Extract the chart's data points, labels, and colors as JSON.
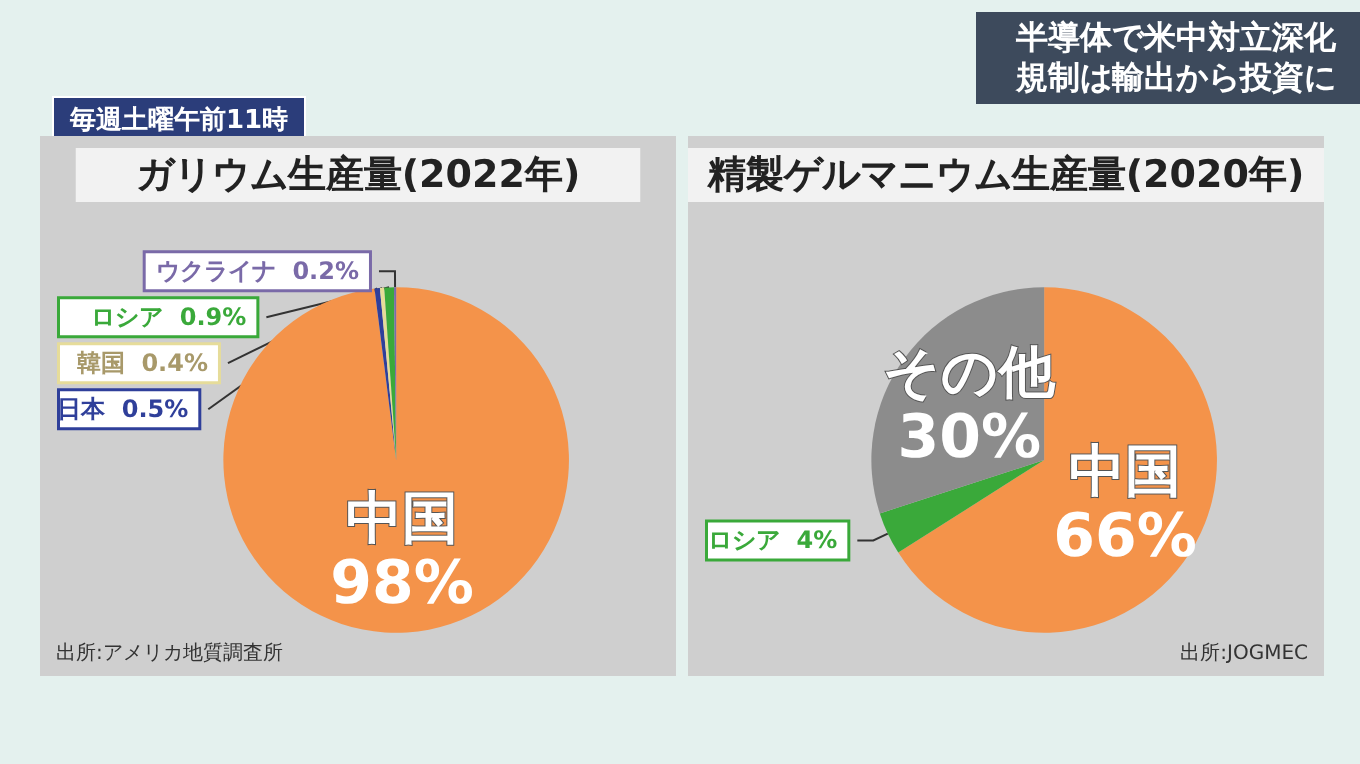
{
  "chart_data": [
    {
      "type": "pie",
      "title": "ガリウム生産量(2022年)",
      "categories": [
        "中国",
        "日本",
        "韓国",
        "ロシア",
        "ウクライナ"
      ],
      "values": [
        98,
        0.5,
        0.4,
        0.9,
        0.2
      ],
      "colors": [
        "#f4934a",
        "#2f3f9a",
        "#e6dc9a",
        "#3aa93a",
        "#7a6aa8"
      ],
      "value_labels": [
        "98%",
        "0.5%",
        "0.4%",
        "0.9%",
        "0.2%"
      ],
      "annotations": [
        "出所:アメリカ地質調査所",
        "毎週土曜午前11時",
        "半導体で米中対立深化",
        "規制は輸出から投資に"
      ]
    },
    {
      "type": "pie",
      "title": "精製ゲルマニウム生産量(2020年)",
      "categories": [
        "中国",
        "ロシア",
        "その他"
      ],
      "values": [
        66,
        4,
        30
      ],
      "colors": [
        "#f4934a",
        "#3aa93a",
        "#8c8c8c"
      ],
      "value_labels": [
        "66%",
        "4%",
        "30%"
      ],
      "annotations": [
        "出所:JOGMEC"
      ]
    }
  ]
}
